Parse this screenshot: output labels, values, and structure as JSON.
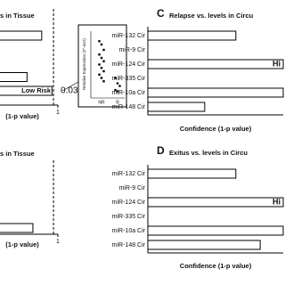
{
  "chart_data": [
    {
      "type": "hbar",
      "title": "s in Tissue",
      "categories": [
        null,
        null,
        null,
        null,
        null,
        null
      ],
      "values": [
        0.89,
        null,
        null,
        0.79,
        0.96,
        null
      ],
      "xlim": [
        0,
        1
      ],
      "xticks": [
        1
      ],
      "xlabel": "(1-p value)",
      "threshold": 0.97,
      "annotations": [
        "Low Risk",
        "0.03"
      ]
    },
    {
      "type": "scatter",
      "ylabel": "Relative Expression (2^-ΔCt)",
      "ylim": [
        0,
        1
      ],
      "groups": [
        {
          "name": "NR",
          "values": [
            0.85,
            0.8,
            0.72,
            0.65,
            0.6,
            0.55,
            0.5,
            0.45,
            0.4,
            0.35,
            0.3,
            0.25
          ]
        },
        {
          "name": "R",
          "values": [
            0.3,
            0.22,
            0.18,
            0.12,
            0.1
          ]
        }
      ]
    },
    {
      "type": "hbar",
      "panel_label": "C",
      "title": "Relapse vs. levels in Circu",
      "categories": [
        "miR-132 Cir",
        "miR-9 Cir",
        "miR-124 Cir",
        "miR-335 Cir",
        "miR-10a Cir",
        "miR-148 Cir"
      ],
      "values": [
        0.65,
        0,
        1,
        0,
        1,
        0.42
      ],
      "xlim": [
        0,
        1
      ],
      "xlabel": "Confidence (1-p value)",
      "annotations": [
        "Hi"
      ]
    },
    {
      "type": "hbar",
      "title": "s in Tissue",
      "categories": [
        null,
        null,
        null,
        null,
        null,
        null
      ],
      "values": [
        null,
        null,
        null,
        null,
        0.83,
        null
      ],
      "xlim": [
        0,
        1
      ],
      "xticks": [
        1
      ],
      "xlabel": "(1-p value)",
      "threshold": 0.97
    },
    {
      "type": "hbar",
      "panel_label": "D",
      "title": "Exitus vs. levels in Circu",
      "categories": [
        "miR-132 Cir",
        "miR-9 Cir",
        "miR-124 Cir",
        "miR-335 Cir",
        "miR-10a Cir",
        "miR-148 Cir"
      ],
      "values": [
        0.65,
        0,
        1,
        0,
        1,
        0.83
      ],
      "xlim": [
        0,
        1
      ],
      "xlabel": "Confidence (1-p value)",
      "annotations": [
        "Hi"
      ]
    }
  ]
}
